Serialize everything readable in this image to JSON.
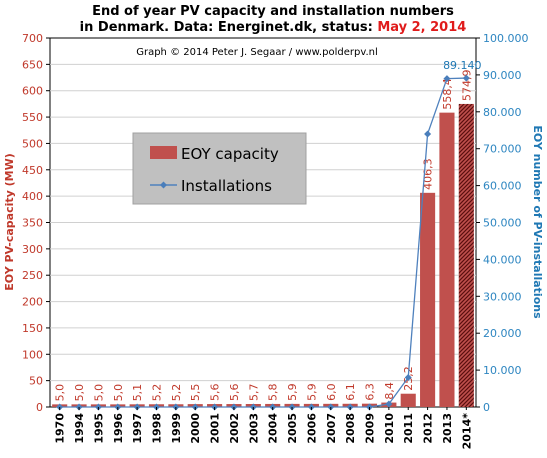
{
  "title": {
    "line1": "End of year PV capacity and installation  numbers",
    "line2_prefix": "in Denmark. Data: Energinet.dk,  status: ",
    "line2_status": "May 2, 2014"
  },
  "credit": "Graph © 2014 Peter J. Segaar / www.polderpv.nl",
  "colors": {
    "bar": "#c0504d",
    "bar_hatched": "#8b1a1a",
    "line": "#4f81bd",
    "marker": "#4a7ebb",
    "left_axis": "#c0392b",
    "right_axis": "#2e86c1",
    "grid": "#d0d0d0"
  },
  "chart_data": {
    "type": "bar",
    "xlabel": "",
    "categories": [
      "1970",
      "1994",
      "1995",
      "1996",
      "1997",
      "1998",
      "1999",
      "2000",
      "2001",
      "2002",
      "2003",
      "2004",
      "2005",
      "2006",
      "2007",
      "2008",
      "2009",
      "2010",
      "2011",
      "2012",
      "2013",
      "2014*"
    ],
    "ylabel": "EOY PV-capacity (MW)",
    "y2label": "EOY number of PV-installations",
    "ylim": [
      0,
      700
    ],
    "y2lim": [
      0,
      100000
    ],
    "yticks": [
      "0",
      "50",
      "100",
      "150",
      "200",
      "250",
      "300",
      "350",
      "400",
      "450",
      "500",
      "550",
      "600",
      "650",
      "700"
    ],
    "y2ticks": [
      "0",
      "10.000",
      "20.000",
      "30.000",
      "40.000",
      "50.000",
      "60.000",
      "70.000",
      "80.000",
      "90.000",
      "100.000"
    ],
    "grid": true,
    "legend_position": "center-left",
    "series": [
      {
        "name": "EOY capacity",
        "type": "bar",
        "axis": "left",
        "values": [
          5.0,
          5.0,
          5.0,
          5.0,
          5.1,
          5.2,
          5.2,
          5.5,
          5.6,
          5.6,
          5.7,
          5.8,
          5.9,
          5.9,
          6.0,
          6.1,
          6.3,
          8.4,
          25.2,
          406.3,
          558.4,
          574.9
        ],
        "labels": [
          "5,0",
          "5,0",
          "5,0",
          "5,0",
          "5,1",
          "5,2",
          "5,2",
          "5,5",
          "5,6",
          "5,6",
          "5,7",
          "5,8",
          "5,9",
          "5,9",
          "6,0",
          "6,1",
          "6,3",
          "8,4",
          "25,2",
          "406,3",
          "558,4",
          "574,9"
        ],
        "hatched_categories": [
          "2014*"
        ]
      },
      {
        "name": "Installations",
        "type": "line",
        "axis": "right",
        "values": [
          0,
          0,
          0,
          0,
          0,
          0,
          0,
          0,
          0,
          0,
          0,
          0,
          0,
          0,
          0,
          0,
          0,
          800,
          8000,
          74000,
          89000,
          89140
        ],
        "labeled_points": [
          {
            "category": "2014*",
            "label": "89.140"
          }
        ]
      }
    ]
  }
}
